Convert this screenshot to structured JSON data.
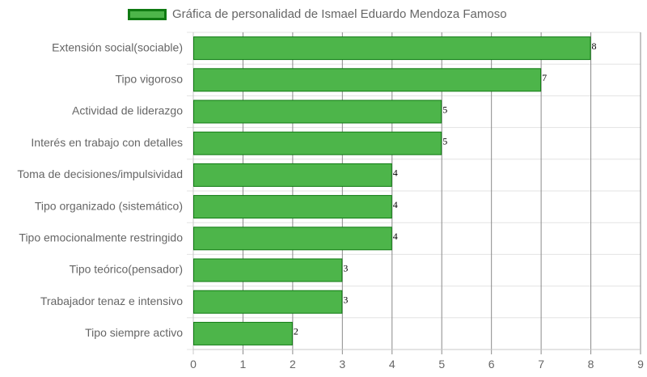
{
  "chart_data": {
    "type": "bar",
    "orientation": "horizontal",
    "legend_position": "top",
    "grid": true,
    "xlim": [
      0,
      9
    ],
    "x_ticks": [
      0,
      1,
      2,
      3,
      4,
      5,
      6,
      7,
      8,
      9
    ],
    "categories": [
      "Extensión social(sociable)",
      "Tipo vigoroso",
      "Actividad de liderazgo",
      "Interés en trabajo con detalles",
      "Toma de decisiones/impulsividad",
      "Tipo organizado (sistemático)",
      "Tipo emocionalmente restringido",
      "Tipo teórico(pensador)",
      "Trabajador tenaz e intensivo",
      "Tipo siempre activo"
    ],
    "series": [
      {
        "name": "Gráfica de personalidad de Ismael Eduardo Mendoza Famoso",
        "values": [
          8,
          7,
          5,
          5,
          4,
          4,
          4,
          3,
          3,
          2
        ],
        "color": "#4db54a",
        "border_color": "#0f7a12"
      }
    ]
  }
}
